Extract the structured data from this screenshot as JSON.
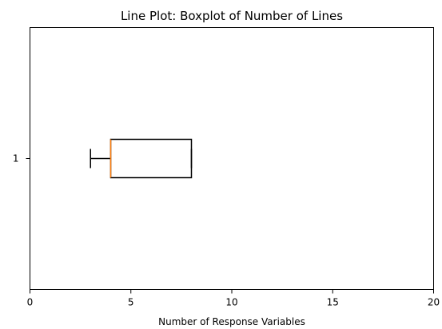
{
  "chart_data": {
    "type": "boxplot",
    "orientation": "horizontal",
    "title": "Line Plot: Boxplot of Number of Lines",
    "xlabel": "Number of Response Variables",
    "ylabel": "",
    "xlim": [
      0,
      20
    ],
    "xticks": [
      0,
      5,
      10,
      15,
      20
    ],
    "categories": [
      "1"
    ],
    "series": [
      {
        "min": 3,
        "q1": 4,
        "median": 4,
        "q3": 8,
        "max": 8
      }
    ],
    "grid": false,
    "colors": {
      "box": "#000000",
      "median": "#ff7f0e",
      "whisker": "#000000"
    }
  }
}
